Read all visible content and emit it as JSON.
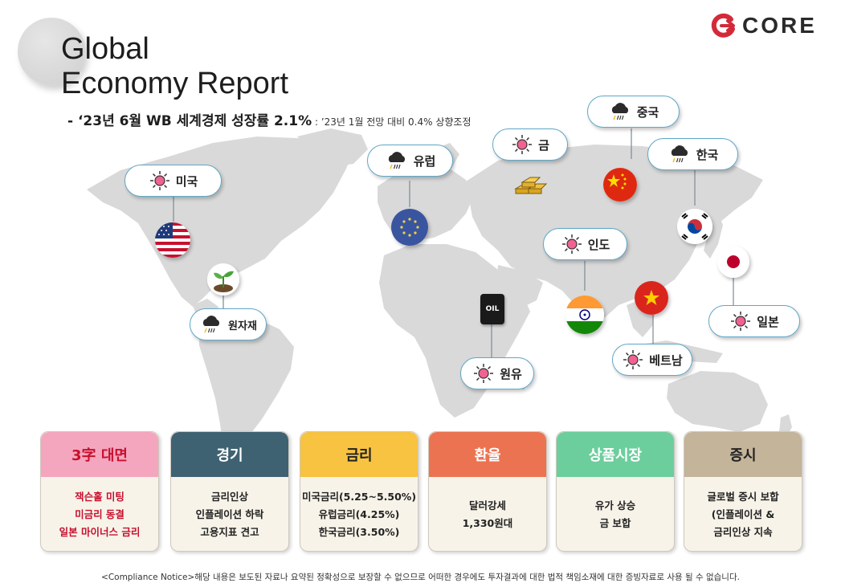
{
  "header": {
    "title_line1": "Global",
    "title_line2": "Economy Report",
    "subtitle": "- ‘23년 6월 WB 세계경제 성장률 2.1%",
    "subtitle_note": " : ’23년 1월 전망 대비 0.4% 상향조정",
    "logo_text": "CORE"
  },
  "callouts": {
    "usa": "미국",
    "europe": "유럽",
    "gold": "금",
    "china": "중국",
    "korea": "한국",
    "india": "인도",
    "japan": "일본",
    "vietnam": "베트남",
    "crude_oil": "원유",
    "raw_materials": "원자재"
  },
  "map_items": {
    "oil_barrel_label": "OIL"
  },
  "panels": [
    {
      "title": "3字 대면",
      "lines": [
        "잭슨홀 미팅",
        "미금리 동결",
        "일본 마이너스 금리"
      ]
    },
    {
      "title": "경기",
      "lines": [
        "금리인상",
        "인플레이션 하락",
        "고용지표 견고"
      ]
    },
    {
      "title": "금리",
      "lines": [
        "미국금리(5.25~5.50%)",
        "유럽금리(4.25%)",
        "한국금리(3.50%)"
      ]
    },
    {
      "title": "환율",
      "lines": [
        "달러강세",
        "1,330원대"
      ]
    },
    {
      "title": "상품시장",
      "lines": [
        "유가 상승",
        "금 보합"
      ]
    },
    {
      "title": "증시",
      "lines": [
        "글로벌 증시 보합",
        "(인플레이션 &",
        "금리인상 지속"
      ]
    }
  ],
  "colors": {
    "panel_heads": [
      "#f4a6bf",
      "#3f6273",
      "#f7c340",
      "#ec7351",
      "#6cce9d",
      "#c3b49a"
    ],
    "panel_title_colors": [
      "#c8102e",
      "#ffffff",
      "#222222",
      "#ffffff",
      "#ffffff",
      "#222222"
    ],
    "first_panel_body_color": "#c8102e",
    "map_gray": "#d9d9d9",
    "callout_border": "#5fa8c8",
    "logo_red": "#d32a3a"
  },
  "icons": {
    "sunny": "sun-icon",
    "rain": "rain-cloud-icon"
  },
  "footer": {
    "compliance": "<Compliance Notice>해당 내용은 보도된 자료나 요약된 정확성으로 보장할 수 없으므로 어떠한 경우에도 투자결과에 대한 법적 책임소재에 대한 증빙자료로 사용 될 수 없습니다."
  }
}
